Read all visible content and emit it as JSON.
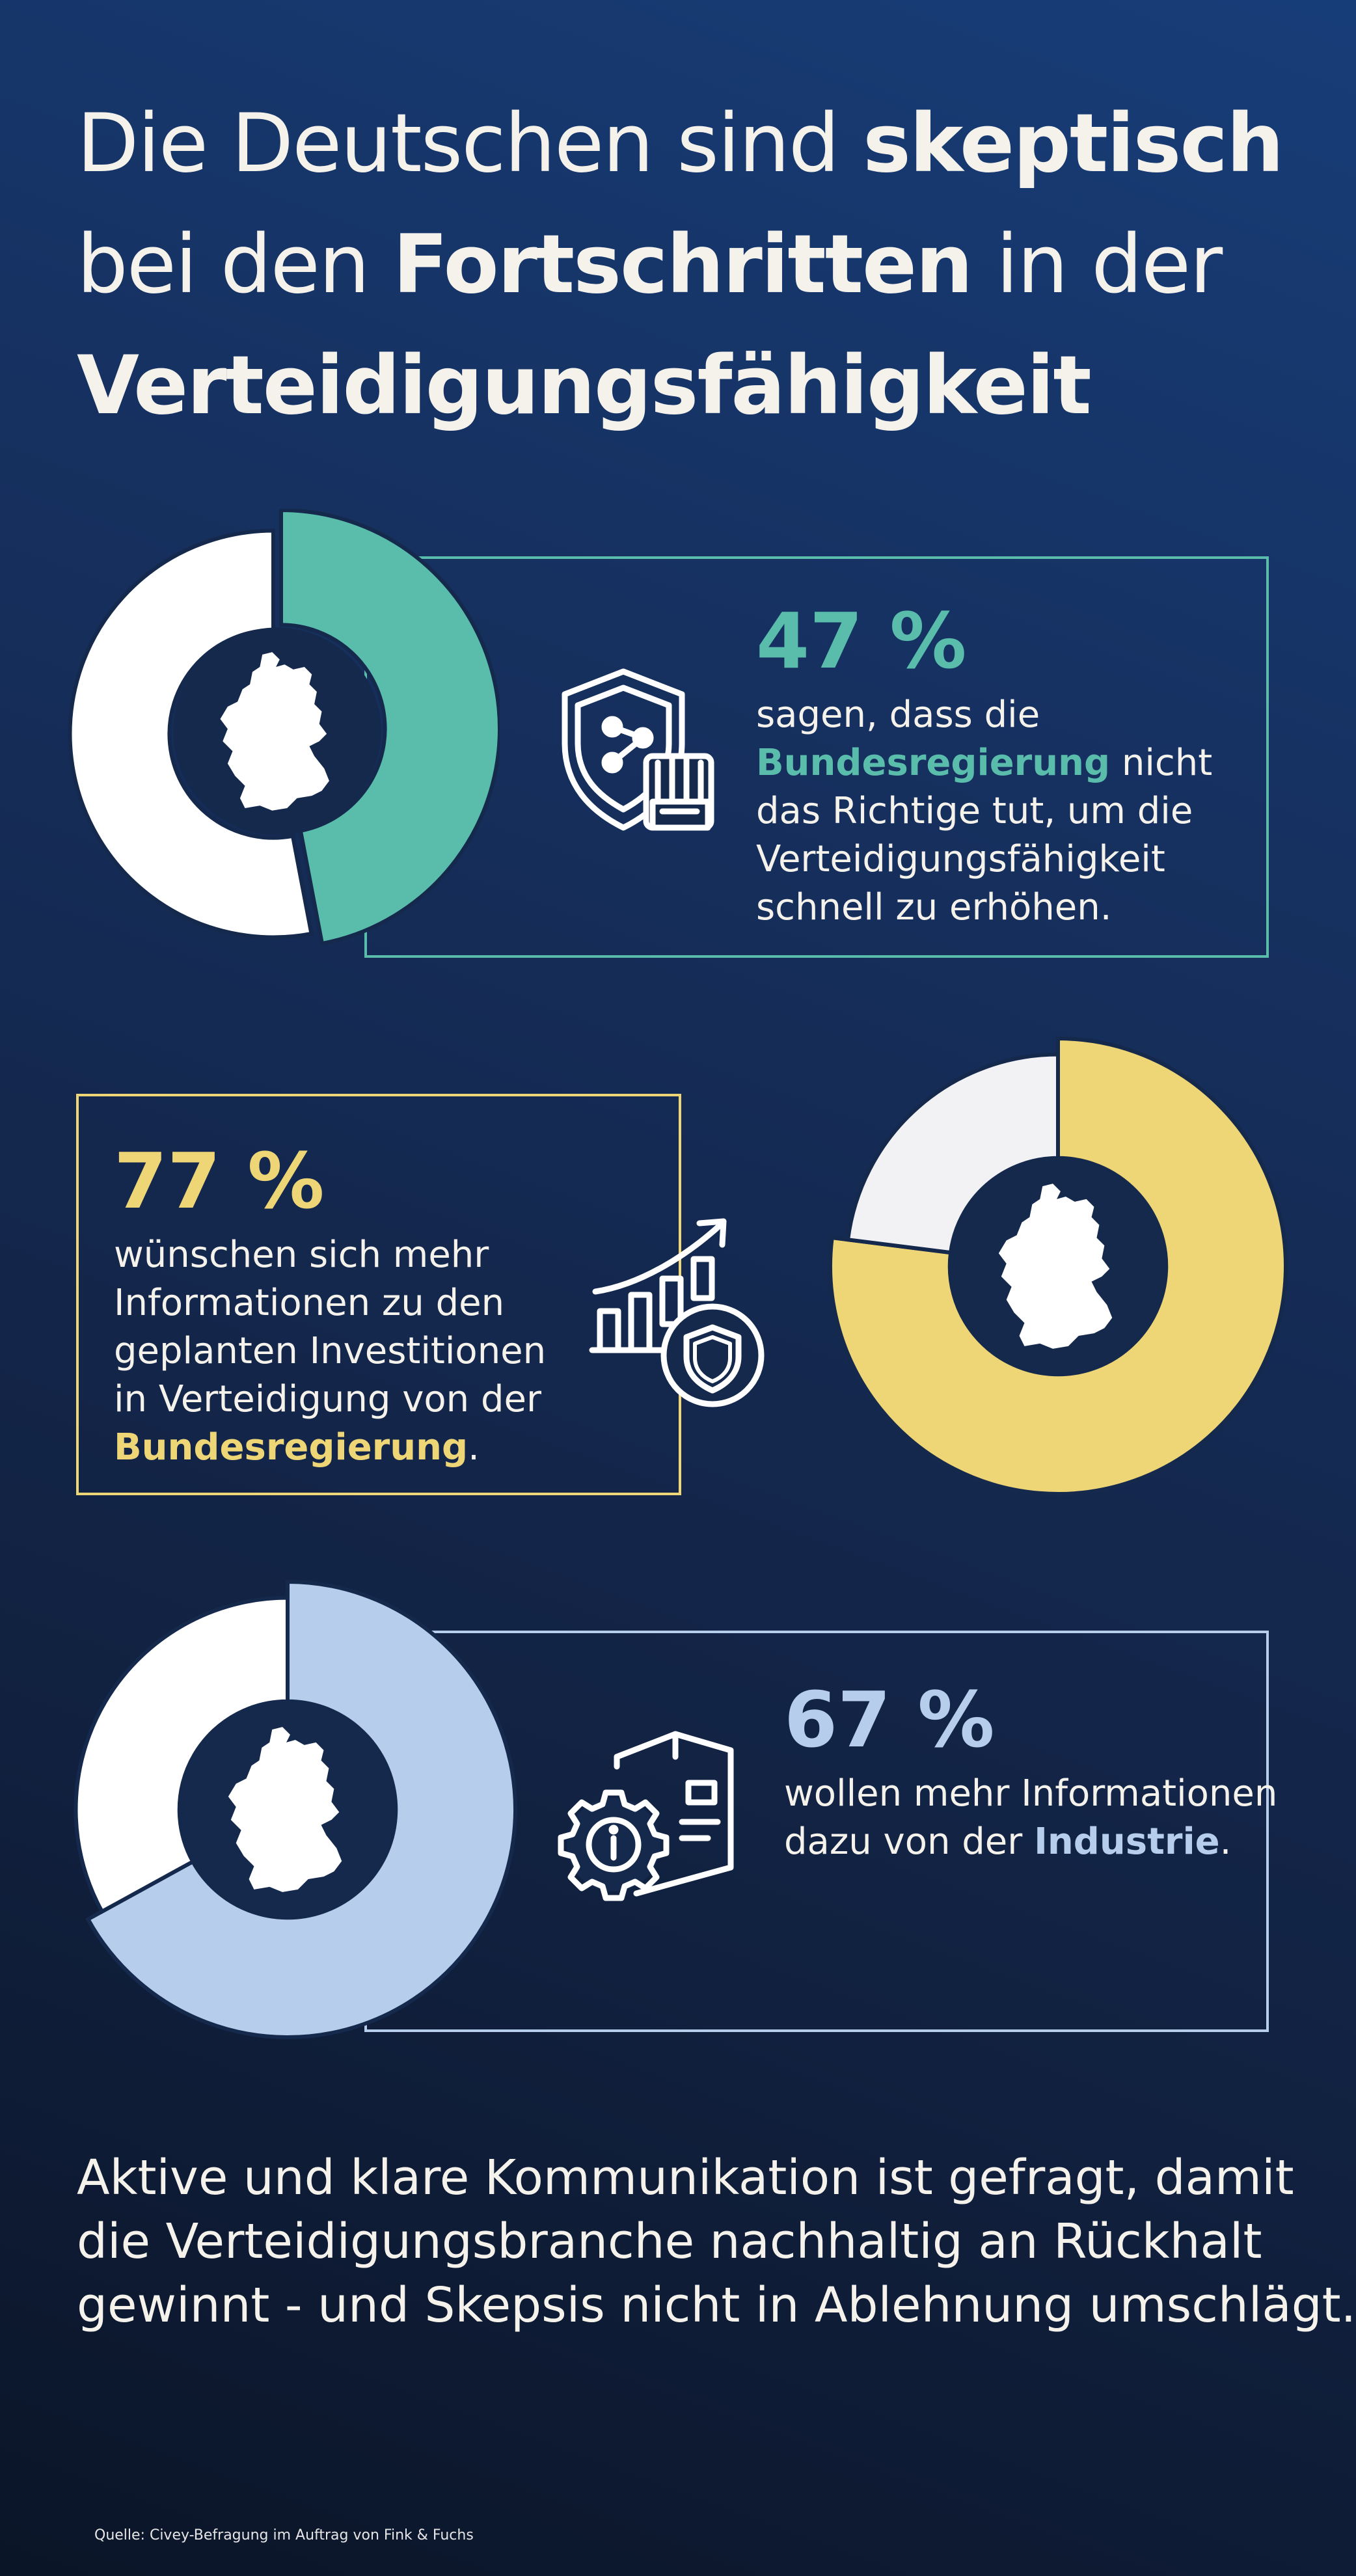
{
  "title": {
    "line1_a": "Die Deutschen sind ",
    "line1_b": "skeptisch",
    "line2_a": "bei den ",
    "line2_b": "Fortschritten",
    "line2_c": " in der",
    "line3": "Verteidigungsfähigkeit"
  },
  "colors": {
    "teal": "#5abcab",
    "yellow": "#eed575",
    "light_blue": "#b6cdec",
    "remainder_white": "#ffffff",
    "remainder_grey": "#f2f2f4",
    "hole": "#15294d"
  },
  "chart_data": [
    {
      "type": "pie",
      "values": [
        47,
        53
      ],
      "highlight_color": "#5abcab",
      "label": "47 %"
    },
    {
      "type": "pie",
      "values": [
        77,
        23
      ],
      "highlight_color": "#eed575",
      "label": "77 %"
    },
    {
      "type": "pie",
      "values": [
        67,
        33
      ],
      "highlight_color": "#b6cdec",
      "label": "67 %"
    }
  ],
  "stats": [
    {
      "percent": "47 %",
      "line1": "sagen, dass die",
      "line2_hl": "Bundesregierung",
      "line2_rest": " nicht",
      "line3": "das Richtige tut, um die",
      "line4": "Verteidigungsfähigkeit",
      "line5": "schnell zu erhöhen.",
      "icon": "shield-fist-icon"
    },
    {
      "percent": "77 %",
      "line1": "wünschen sich mehr",
      "line2": "Informationen zu den",
      "line3": "geplanten Investitionen",
      "line4": "in Verteidigung von der",
      "line5_hl": "Bundesregierung",
      "line5_rest": ".",
      "icon": "growth-chart-shield-icon"
    },
    {
      "percent": "67 %",
      "line1": "wollen mehr Informationen",
      "line2_a": "dazu von der ",
      "line2_hl": "Industrie",
      "line2_rest": ".",
      "icon": "gear-info-document-icon"
    }
  ],
  "footer": {
    "line1": "Aktive und klare Kommunikation ist gefragt, damit",
    "line2": "die Verteidigungsbranche nachhaltig an Rückhalt",
    "line3": "gewinnt - und Skepsis nicht in Ablehnung umschlägt.",
    "source": "Quelle: Civey-Befragung im Auftrag von Fink & Fuchs"
  }
}
